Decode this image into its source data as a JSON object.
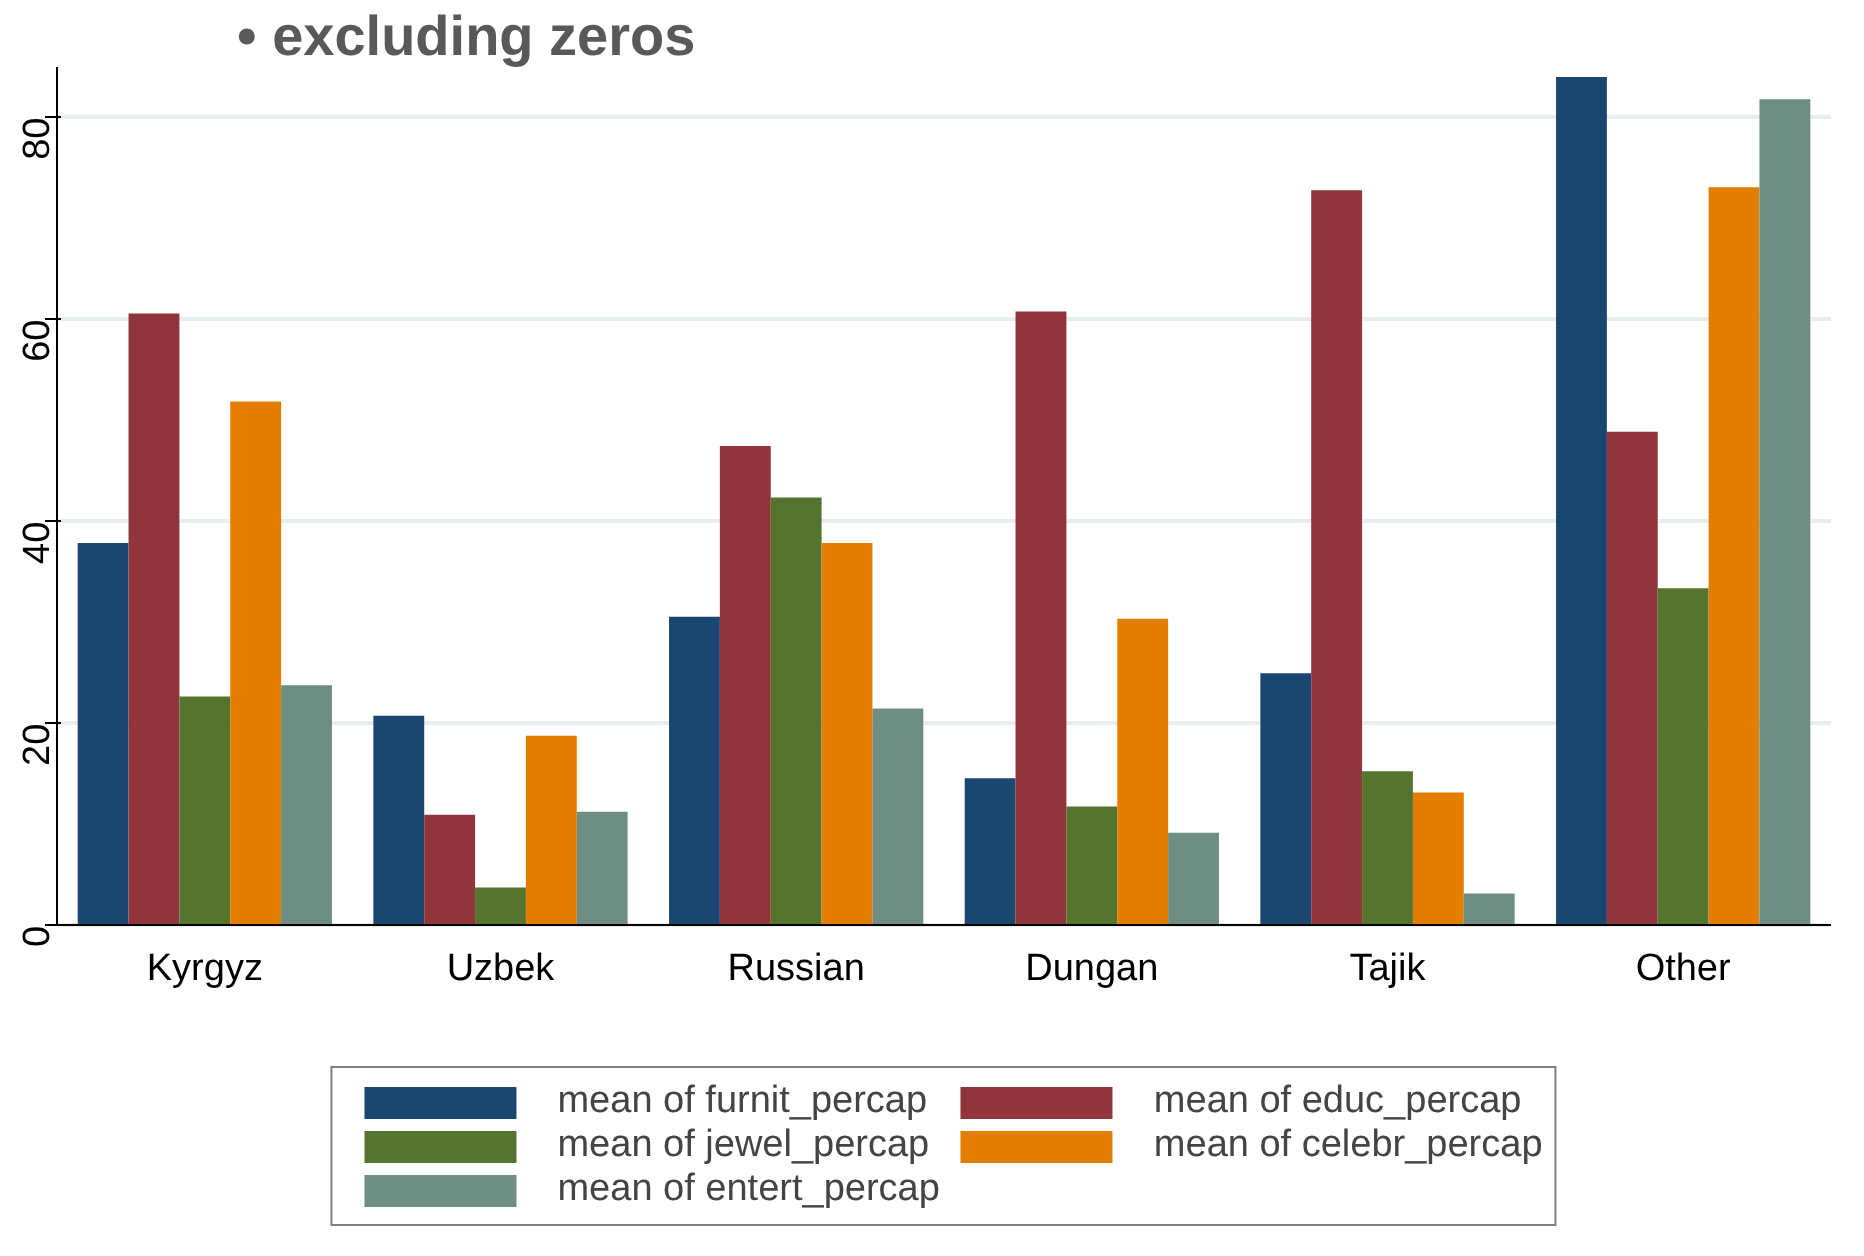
{
  "chart_data": {
    "type": "bar",
    "title": "• excluding zeros",
    "categories": [
      "Kyrgyz",
      "Uzbek",
      "Russian",
      "Dungan",
      "Tajik",
      "Other"
    ],
    "series": [
      {
        "name": "mean of furnit_percap",
        "color": "#1a476f",
        "values": [
          37.9,
          20.8,
          30.6,
          14.6,
          25.0,
          84.0
        ]
      },
      {
        "name": "mean of educ_percap",
        "color": "#90353b",
        "values": [
          60.6,
          11.0,
          47.5,
          60.8,
          72.8,
          48.9
        ]
      },
      {
        "name": "mean of jewel_percap",
        "color": "#55752f",
        "values": [
          22.7,
          3.8,
          42.4,
          11.8,
          15.3,
          33.4
        ]
      },
      {
        "name": "mean of celebr_percap",
        "color": "#e37e00",
        "values": [
          51.9,
          18.8,
          37.9,
          30.4,
          13.2,
          73.1
        ]
      },
      {
        "name": "mean of entert_percap",
        "color": "#6e8e84",
        "values": [
          23.8,
          11.3,
          21.5,
          9.2,
          3.2,
          81.8
        ]
      }
    ],
    "ylim": [
      0,
      85
    ],
    "yticks": [
      0,
      20,
      40,
      60,
      80
    ],
    "grid": "y",
    "legend": "bottom"
  }
}
